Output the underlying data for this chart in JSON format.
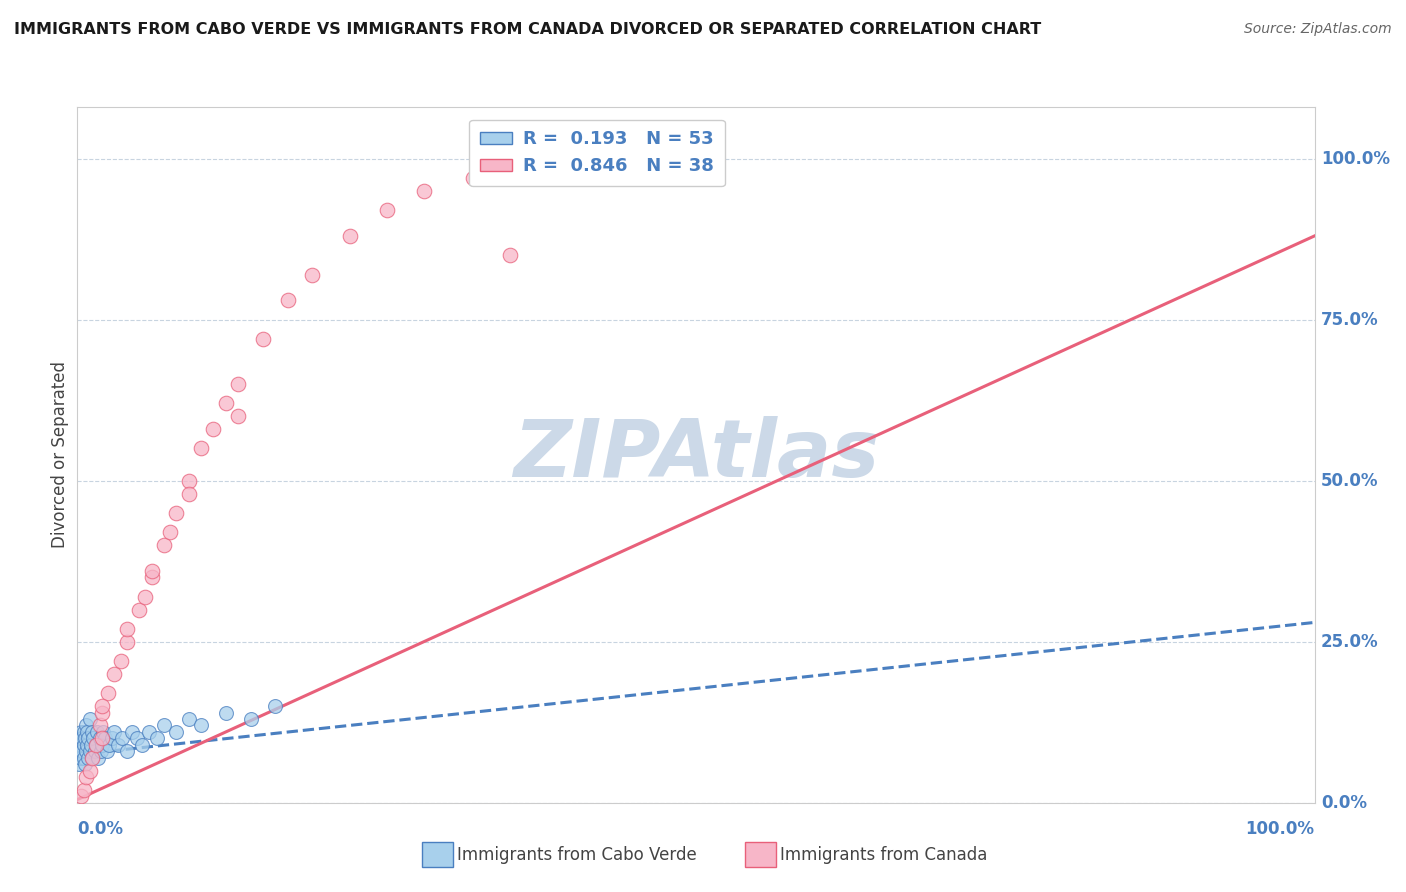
{
  "title": "IMMIGRANTS FROM CABO VERDE VS IMMIGRANTS FROM CANADA DIVORCED OR SEPARATED CORRELATION CHART",
  "source": "Source: ZipAtlas.com",
  "ylabel": "Divorced or Separated",
  "r_cabo_verde": 0.193,
  "n_cabo_verde": 53,
  "r_canada": 0.846,
  "n_canada": 38,
  "color_cabo_verde": "#a8d0ec",
  "color_canada": "#f7b6c8",
  "trend_cabo_verde_color": "#4a7fc0",
  "trend_canada_color": "#e8607a",
  "watermark_text": "ZIPAtlas",
  "watermark_color": "#ccd9e8",
  "ytick_labels": [
    "100.0%",
    "75.0%",
    "50.0%",
    "25.0%",
    "0.0%"
  ],
  "ytick_values": [
    1.0,
    0.75,
    0.5,
    0.25,
    0.0
  ],
  "xlim": [
    0.0,
    1.0
  ],
  "ylim": [
    0.0,
    1.08
  ],
  "cabo_verde_x": [
    0.001,
    0.002,
    0.002,
    0.003,
    0.003,
    0.003,
    0.004,
    0.004,
    0.005,
    0.005,
    0.005,
    0.006,
    0.006,
    0.007,
    0.007,
    0.008,
    0.008,
    0.009,
    0.009,
    0.01,
    0.01,
    0.011,
    0.012,
    0.012,
    0.013,
    0.014,
    0.015,
    0.016,
    0.017,
    0.018,
    0.019,
    0.02,
    0.021,
    0.022,
    0.024,
    0.026,
    0.028,
    0.03,
    0.033,
    0.036,
    0.04,
    0.044,
    0.048,
    0.052,
    0.058,
    0.064,
    0.07,
    0.08,
    0.09,
    0.1,
    0.12,
    0.14,
    0.16
  ],
  "cabo_verde_y": [
    0.06,
    0.08,
    0.1,
    0.07,
    0.09,
    0.11,
    0.08,
    0.1,
    0.07,
    0.09,
    0.11,
    0.06,
    0.1,
    0.08,
    0.12,
    0.09,
    0.11,
    0.07,
    0.1,
    0.08,
    0.13,
    0.09,
    0.07,
    0.11,
    0.1,
    0.08,
    0.09,
    0.11,
    0.07,
    0.1,
    0.08,
    0.09,
    0.11,
    0.1,
    0.08,
    0.09,
    0.1,
    0.11,
    0.09,
    0.1,
    0.08,
    0.11,
    0.1,
    0.09,
    0.11,
    0.1,
    0.12,
    0.11,
    0.13,
    0.12,
    0.14,
    0.13,
    0.15
  ],
  "canada_x": [
    0.003,
    0.005,
    0.007,
    0.01,
    0.012,
    0.015,
    0.018,
    0.02,
    0.025,
    0.03,
    0.035,
    0.04,
    0.05,
    0.055,
    0.06,
    0.07,
    0.075,
    0.08,
    0.09,
    0.1,
    0.11,
    0.12,
    0.13,
    0.15,
    0.17,
    0.19,
    0.22,
    0.25,
    0.28,
    0.32,
    0.36,
    0.02,
    0.04,
    0.06,
    0.09,
    0.13,
    0.02,
    0.35
  ],
  "canada_y": [
    0.01,
    0.02,
    0.04,
    0.05,
    0.07,
    0.09,
    0.12,
    0.14,
    0.17,
    0.2,
    0.22,
    0.25,
    0.3,
    0.32,
    0.35,
    0.4,
    0.42,
    0.45,
    0.5,
    0.55,
    0.58,
    0.62,
    0.65,
    0.72,
    0.78,
    0.82,
    0.88,
    0.92,
    0.95,
    0.97,
    0.99,
    0.15,
    0.27,
    0.36,
    0.48,
    0.6,
    0.1,
    0.85
  ],
  "trend_cabo_start_x": 0.0,
  "trend_cabo_start_y": 0.075,
  "trend_cabo_end_x": 1.0,
  "trend_cabo_end_y": 0.28,
  "trend_canada_start_x": 0.0,
  "trend_canada_start_y": 0.005,
  "trend_canada_end_x": 1.0,
  "trend_canada_end_y": 0.88
}
